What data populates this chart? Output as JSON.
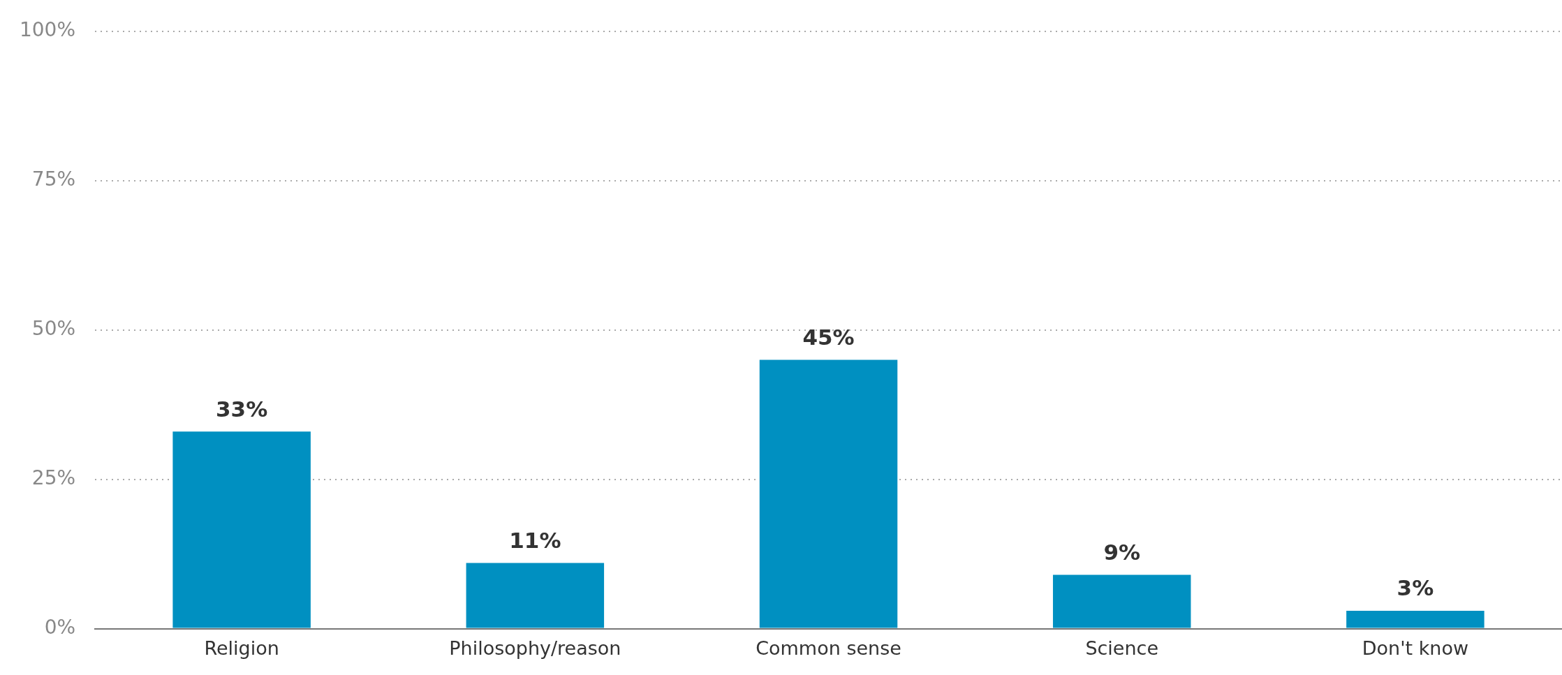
{
  "chart_data": {
    "type": "bar",
    "categories": [
      "Religion",
      "Philosophy/reason",
      "Common sense",
      "Science",
      "Don't know"
    ],
    "values": [
      33,
      11,
      45,
      9,
      3
    ],
    "value_labels": [
      "33%",
      "11%",
      "45%",
      "9%",
      "3%"
    ],
    "color": "#0090c1",
    "ylim": [
      0,
      100
    ],
    "yticks": [
      {
        "value": 0,
        "label": "0%"
      },
      {
        "value": 25,
        "label": "25%"
      },
      {
        "value": 50,
        "label": "50%"
      },
      {
        "value": 75,
        "label": "75%"
      },
      {
        "value": 100,
        "label": "100%"
      }
    ],
    "grid": "y",
    "legend": false
  }
}
